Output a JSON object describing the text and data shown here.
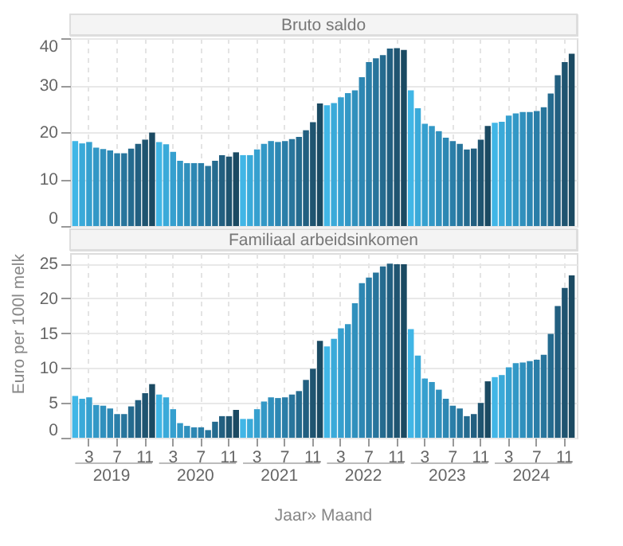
{
  "chart_data": [
    {
      "type": "bar",
      "title": "Bruto saldo",
      "ylim": [
        0,
        40
      ],
      "yticks": [
        0,
        10,
        20,
        30,
        40
      ],
      "grid": true,
      "tick_labels": "y",
      "categories": [
        null,
        null,
        "3",
        null,
        null,
        null,
        "7",
        null,
        null,
        null,
        "11",
        null,
        null,
        null,
        "3",
        null,
        null,
        null,
        "7",
        null,
        null,
        null,
        "11",
        null,
        null,
        null,
        "3",
        null,
        null,
        null,
        "7",
        null,
        null,
        null,
        "11",
        null,
        null,
        null,
        "3",
        null,
        null,
        null,
        "7",
        null,
        null,
        null,
        "11",
        null,
        null,
        null,
        "3",
        null,
        null,
        null,
        "7",
        null,
        null,
        null,
        "11",
        null,
        null,
        null,
        "3",
        null,
        null,
        null,
        "7",
        null,
        null,
        null,
        "11",
        null
      ],
      "values": [
        18.1,
        17.6,
        17.9,
        16.7,
        16.4,
        16.1,
        15.5,
        15.5,
        16.5,
        17.5,
        18.4,
        19.9,
        17.9,
        17.4,
        15.8,
        13.9,
        13.4,
        13.4,
        13.4,
        12.8,
        13.9,
        15.1,
        14.8,
        15.7,
        15.1,
        15.1,
        16.3,
        17.5,
        18.1,
        17.9,
        18.1,
        18.5,
        19.0,
        20.4,
        22.1,
        26.1,
        25.7,
        26.2,
        27.4,
        28.3,
        28.9,
        31.7,
        34.9,
        35.7,
        36.4,
        37.8,
        37.9,
        37.5,
        28.9,
        25.1,
        21.8,
        21.3,
        20.2,
        18.8,
        18.1,
        17.5,
        16.3,
        16.5,
        18.4,
        21.3,
        22.0,
        22.2,
        23.5,
        24.0,
        24.3,
        24.3,
        24.5,
        25.3,
        28.2,
        32.1,
        34.9,
        36.7
      ],
      "colors": [
        "#41b6e6",
        "#3aaad9",
        "#36a0cf",
        "#3398c6",
        "#3090bd",
        "#2d87b3",
        "#2a7ea8",
        "#28759c",
        "#256b8f",
        "#225f80",
        "#1f5470",
        "#1b4a62",
        "#41b6e6",
        "#3aaad9",
        "#36a0cf",
        "#3398c6",
        "#3090bd",
        "#2d87b3",
        "#2a7ea8",
        "#28759c",
        "#256b8f",
        "#225f80",
        "#1f5470",
        "#1b4a62",
        "#41b6e6",
        "#3aaad9",
        "#36a0cf",
        "#3398c6",
        "#3090bd",
        "#2d87b3",
        "#2a7ea8",
        "#28759c",
        "#256b8f",
        "#225f80",
        "#1f5470",
        "#1b4a62",
        "#41b6e6",
        "#3aaad9",
        "#36a0cf",
        "#3398c6",
        "#3090bd",
        "#2d87b3",
        "#2a7ea8",
        "#28759c",
        "#256b8f",
        "#225f80",
        "#1f5470",
        "#1b4a62",
        "#41b6e6",
        "#3aaad9",
        "#36a0cf",
        "#3398c6",
        "#3090bd",
        "#2d87b3",
        "#2a7ea8",
        "#28759c",
        "#256b8f",
        "#225f80",
        "#1f5470",
        "#1b4a62",
        "#41b6e6",
        "#3aaad9",
        "#36a0cf",
        "#3398c6",
        "#3090bd",
        "#2d87b3",
        "#2a7ea8",
        "#28759c",
        "#256b8f",
        "#225f80",
        "#1f5470",
        "#1b4a62"
      ]
    },
    {
      "type": "bar",
      "title": "Familiaal arbeidsinkomen",
      "ylabel": "Euro per 100l melk",
      "xlabel": "Jaar» Maand",
      "ylim": [
        0,
        26.5
      ],
      "yticks": [
        0,
        5,
        10,
        15,
        20,
        25
      ],
      "grid": true,
      "annotations": [
        "2019",
        "2020",
        "2021",
        "2022",
        "2023",
        "2024"
      ],
      "categories": [
        null,
        null,
        "3",
        null,
        null,
        null,
        "7",
        null,
        null,
        null,
        "11",
        null,
        null,
        null,
        "3",
        null,
        null,
        null,
        "7",
        null,
        null,
        null,
        "11",
        null,
        null,
        null,
        "3",
        null,
        null,
        null,
        "7",
        null,
        null,
        null,
        "11",
        null,
        null,
        null,
        "3",
        null,
        null,
        null,
        "7",
        null,
        null,
        null,
        "11",
        null,
        null,
        null,
        "3",
        null,
        null,
        null,
        "7",
        null,
        null,
        null,
        "11",
        null,
        null,
        null,
        "3",
        null,
        null,
        null,
        "7",
        null,
        null,
        null,
        "11",
        null
      ],
      "values": [
        6.0,
        5.6,
        5.8,
        4.7,
        4.6,
        4.2,
        3.4,
        3.4,
        4.5,
        5.4,
        6.4,
        7.7,
        6.2,
        5.8,
        4.1,
        2.1,
        1.7,
        1.5,
        1.5,
        1.1,
        2.3,
        3.1,
        3.1,
        4.0,
        2.7,
        2.7,
        4.1,
        5.2,
        5.8,
        5.7,
        5.8,
        6.2,
        6.7,
        8.3,
        9.9,
        13.9,
        13.1,
        14.2,
        15.7,
        16.3,
        19.3,
        22.2,
        23.0,
        23.7,
        24.6,
        25.0,
        24.9,
        24.9,
        15.6,
        11.8,
        8.5,
        8.0,
        6.9,
        5.6,
        4.6,
        4.2,
        3.1,
        3.4,
        5.0,
        8.1,
        8.7,
        9.0,
        10.1,
        10.7,
        10.8,
        11.0,
        11.2,
        11.9,
        14.9,
        18.9,
        21.5,
        23.3
      ],
      "colors": [
        "#41b6e6",
        "#3aaad9",
        "#36a0cf",
        "#3398c6",
        "#3090bd",
        "#2d87b3",
        "#2a7ea8",
        "#28759c",
        "#256b8f",
        "#225f80",
        "#1f5470",
        "#1b4a62",
        "#41b6e6",
        "#3aaad9",
        "#36a0cf",
        "#3398c6",
        "#3090bd",
        "#2d87b3",
        "#2a7ea8",
        "#28759c",
        "#256b8f",
        "#225f80",
        "#1f5470",
        "#1b4a62",
        "#41b6e6",
        "#3aaad9",
        "#36a0cf",
        "#3398c6",
        "#3090bd",
        "#2d87b3",
        "#2a7ea8",
        "#28759c",
        "#256b8f",
        "#225f80",
        "#1f5470",
        "#1b4a62",
        "#41b6e6",
        "#3aaad9",
        "#36a0cf",
        "#3398c6",
        "#3090bd",
        "#2d87b3",
        "#2a7ea8",
        "#28759c",
        "#256b8f",
        "#225f80",
        "#1f5470",
        "#1b4a62",
        "#41b6e6",
        "#3aaad9",
        "#36a0cf",
        "#3398c6",
        "#3090bd",
        "#2d87b3",
        "#2a7ea8",
        "#28759c",
        "#256b8f",
        "#225f80",
        "#1f5470",
        "#1b4a62",
        "#41b6e6",
        "#3aaad9",
        "#36a0cf",
        "#3398c6",
        "#3090bd",
        "#2d87b3",
        "#2a7ea8",
        "#28759c",
        "#256b8f",
        "#225f80",
        "#1f5470",
        "#1b4a62"
      ]
    }
  ]
}
